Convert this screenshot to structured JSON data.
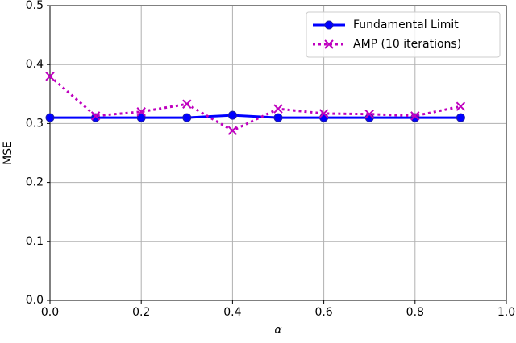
{
  "chart_data": {
    "type": "line",
    "x_label": "α",
    "y_label": "MSE",
    "x": [
      0.0,
      0.1,
      0.2,
      0.3,
      0.4,
      0.5,
      0.6,
      0.7,
      0.8,
      0.9
    ],
    "series": [
      {
        "name": "Fundamental Limit",
        "color": "#0000ff",
        "marker": "o",
        "linestyle": "solid",
        "values": [
          0.31,
          0.31,
          0.31,
          0.31,
          0.314,
          0.31,
          0.31,
          0.31,
          0.31,
          0.31
        ]
      },
      {
        "name": "AMP (10 iterations)",
        "color": "#bf00bf",
        "marker": "x",
        "linestyle": "dotted",
        "values": [
          0.38,
          0.313,
          0.32,
          0.333,
          0.288,
          0.325,
          0.317,
          0.316,
          0.313,
          0.329
        ]
      }
    ],
    "xlim": [
      0,
      1
    ],
    "ylim": [
      0,
      0.5
    ],
    "xticks": [
      {
        "value": 0,
        "label": "0.0"
      },
      0.2,
      0.4,
      0.6,
      0.8,
      {
        "value": 1,
        "label": "1.0"
      }
    ],
    "yticks": [
      {
        "value": 0,
        "label": "0.0"
      },
      0.1,
      0.2,
      0.3,
      0.4,
      0.5
    ],
    "grid": true,
    "legend": "upper right"
  }
}
